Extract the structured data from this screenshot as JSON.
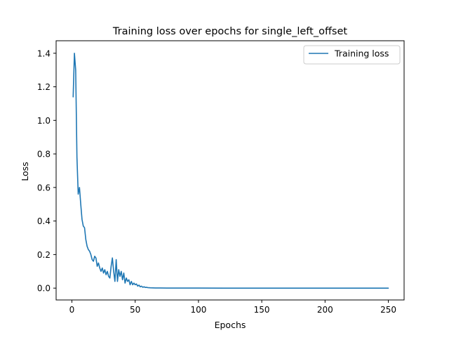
{
  "chart_data": {
    "type": "line",
    "title": "Training loss over epochs for single_left_offset",
    "xlabel": "Epochs",
    "ylabel": "Loss",
    "xlim": [
      -12.45,
      262.45
    ],
    "ylim": [
      -0.0705,
      1.4745
    ],
    "xticks": [
      0,
      50,
      100,
      150,
      200,
      250
    ],
    "xtick_labels": [
      "0",
      "50",
      "100",
      "150",
      "200",
      "250"
    ],
    "yticks": [
      0.0,
      0.2,
      0.4,
      0.6,
      0.8,
      1.0,
      1.2,
      1.4
    ],
    "ytick_labels": [
      "0.0",
      "0.2",
      "0.4",
      "0.6",
      "0.8",
      "1.0",
      "1.2",
      "1.4"
    ],
    "grid": false,
    "legend_position": "upper right",
    "series": [
      {
        "name": "Training loss",
        "color": "#1f77b4",
        "x": [
          1,
          2,
          3,
          4,
          5,
          6,
          7,
          8,
          9,
          10,
          11,
          12,
          13,
          14,
          15,
          16,
          17,
          18,
          19,
          20,
          21,
          22,
          23,
          24,
          25,
          26,
          27,
          28,
          29,
          30,
          31,
          32,
          33,
          34,
          35,
          36,
          37,
          38,
          39,
          40,
          41,
          42,
          43,
          44,
          45,
          46,
          47,
          48,
          49,
          50,
          51,
          52,
          53,
          54,
          55,
          56,
          57,
          58,
          59,
          60,
          62,
          64,
          66,
          68,
          70,
          75,
          80,
          90,
          100,
          120,
          150,
          200,
          250
        ],
        "y": [
          1.14,
          1.4,
          1.3,
          0.78,
          0.56,
          0.6,
          0.5,
          0.41,
          0.37,
          0.36,
          0.29,
          0.25,
          0.23,
          0.22,
          0.2,
          0.17,
          0.16,
          0.19,
          0.18,
          0.13,
          0.15,
          0.12,
          0.1,
          0.12,
          0.09,
          0.11,
          0.08,
          0.1,
          0.07,
          0.06,
          0.13,
          0.18,
          0.1,
          0.04,
          0.17,
          0.04,
          0.11,
          0.07,
          0.1,
          0.05,
          0.09,
          0.03,
          0.06,
          0.04,
          0.05,
          0.02,
          0.04,
          0.02,
          0.03,
          0.02,
          0.025,
          0.012,
          0.018,
          0.008,
          0.012,
          0.005,
          0.008,
          0.004,
          0.005,
          0.003,
          0.002,
          0.0015,
          0.001,
          0.001,
          0.0008,
          0.0005,
          0.0004,
          0.0003,
          0.0002,
          0.0001,
          0.0001,
          0.0001,
          0.0001
        ]
      }
    ]
  }
}
